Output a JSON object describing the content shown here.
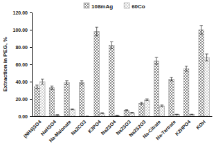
{
  "chart_data": {
    "type": "bar",
    "y_label": "Extraction in PEG, %",
    "categories": [
      "(NH4)SO4",
      "NaHSO4",
      "Na-Malonate",
      "Na2CO3",
      "K3PO4",
      "Na2SO4",
      "Na2SO3",
      "Na2S2O3",
      "Na-Citrate",
      "Na-Tartrate",
      "K2HPO4",
      "KOH"
    ],
    "series": [
      {
        "name": "108mAg",
        "color": "#3a3a3a",
        "values": [
          34,
          33,
          39,
          39,
          98,
          82,
          7,
          15,
          64,
          43,
          55,
          100
        ],
        "errors": [
          2,
          2,
          2,
          2,
          5,
          4,
          0.5,
          1,
          4,
          2,
          3,
          5
        ]
      },
      {
        "name": "60Co",
        "color": "#3a3a3a",
        "values": [
          40,
          1.5,
          8,
          0,
          3.5,
          1,
          4,
          19,
          12,
          2,
          2,
          68
        ],
        "errors": [
          3,
          0.3,
          0.5,
          0,
          0.5,
          0.3,
          0.3,
          1,
          1,
          0.3,
          0.3,
          4
        ]
      }
    ],
    "ylim": [
      0,
      120
    ],
    "yticks": [
      {
        "value": 0,
        "label": "0.00"
      },
      {
        "value": 20,
        "label": "20.00"
      },
      {
        "value": 40,
        "label": "40.00"
      },
      {
        "value": 60,
        "label": "60.00"
      },
      {
        "value": 80,
        "label": "80.00"
      },
      {
        "value": 100,
        "label": "100.00"
      },
      {
        "value": 120,
        "label": "120.00"
      }
    ],
    "legend": "top"
  }
}
